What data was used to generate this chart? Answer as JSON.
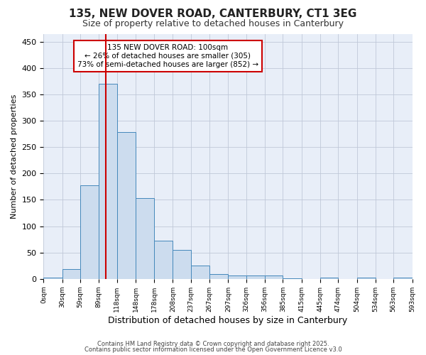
{
  "title": "135, NEW DOVER ROAD, CANTERBURY, CT1 3EG",
  "subtitle": "Size of property relative to detached houses in Canterbury",
  "xlabel": "Distribution of detached houses by size in Canterbury",
  "ylabel": "Number of detached properties",
  "bar_color": "#ccdcee",
  "bar_edge_color": "#4488bb",
  "background_color": "#ffffff",
  "plot_bg_color": "#e8eef8",
  "grid_color": "#c0c8d8",
  "vline_x": 100,
  "vline_color": "#cc0000",
  "annotation_text": "135 NEW DOVER ROAD: 100sqm\n← 26% of detached houses are smaller (305)\n73% of semi-detached houses are larger (852) →",
  "annotation_box_color": "white",
  "annotation_box_edge": "#cc0000",
  "bin_edges": [
    0,
    30,
    59,
    89,
    118,
    148,
    178,
    208,
    237,
    267,
    297,
    326,
    356,
    385,
    415,
    445,
    474,
    504,
    534,
    563,
    593
  ],
  "bar_heights": [
    3,
    18,
    178,
    370,
    278,
    153,
    73,
    55,
    25,
    9,
    6,
    6,
    7,
    1,
    0,
    3,
    0,
    3,
    0,
    3
  ],
  "ylim": [
    0,
    465
  ],
  "yticks": [
    0,
    50,
    100,
    150,
    200,
    250,
    300,
    350,
    400,
    450
  ],
  "footer_line1": "Contains HM Land Registry data © Crown copyright and database right 2025.",
  "footer_line2": "Contains public sector information licensed under the Open Government Licence v3.0"
}
